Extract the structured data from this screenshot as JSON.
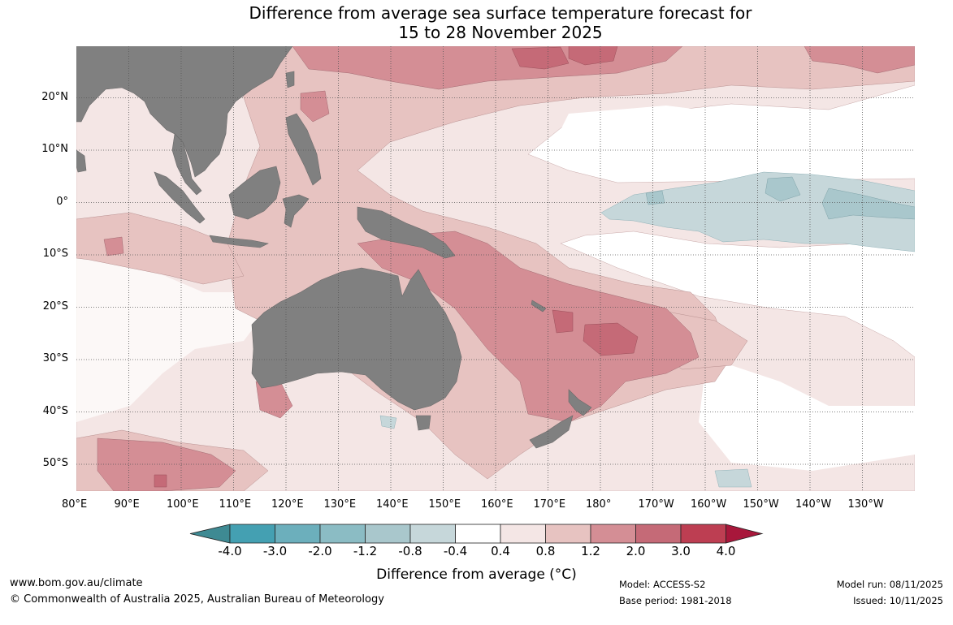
{
  "title": {
    "line1": "Difference from average sea surface temperature forecast for",
    "line2": "15 to 28 November 2025"
  },
  "map": {
    "lon_labels": [
      "80°E",
      "90°E",
      "100°E",
      "110°E",
      "120°E",
      "130°E",
      "140°E",
      "150°E",
      "160°E",
      "170°E",
      "180°",
      "170°W",
      "160°W",
      "150°W",
      "140°W",
      "130°W"
    ],
    "lat_labels": [
      "20°N",
      "10°N",
      "0°",
      "10°S",
      "20°S",
      "30°S",
      "40°S",
      "50°S"
    ],
    "colors": {
      "land": "#808080",
      "warm_04_08": "#f4e6e5",
      "warm_08_12": "#e7c3c1",
      "warm_12_20": "#d48e95",
      "warm_20_30": "#c56a77",
      "cool_m04_m08": "#c6d7da",
      "cool_m08_m12": "#a9c7cc"
    }
  },
  "colorbar": {
    "tick_labels": [
      "-4.0",
      "-3.0",
      "-2.0",
      "-1.2",
      "-0.8",
      "-0.4",
      "0.4",
      "0.8",
      "1.2",
      "2.0",
      "3.0",
      "4.0"
    ],
    "segment_colors": [
      "#44a0b2",
      "#6cafbc",
      "#8bbcc4",
      "#a9c7cc",
      "#c6d7da",
      "#ffffff",
      "#f4e6e5",
      "#e7c3c1",
      "#d48e95",
      "#c56a77",
      "#bd3e52"
    ],
    "end_colors": {
      "low": "#3e8a93",
      "high": "#a8173b"
    },
    "title": "Difference from average (°C)"
  },
  "footer": {
    "website": "www.bom.gov.au/climate",
    "copyright": "© Commonwealth of Australia 2025, Australian Bureau of Meteorology",
    "model": "Model: ACCESS-S2",
    "base_period": "Base period: 1981-2018",
    "model_run": "Model run: 08/11/2025",
    "issued": "Issued: 10/11/2025"
  }
}
